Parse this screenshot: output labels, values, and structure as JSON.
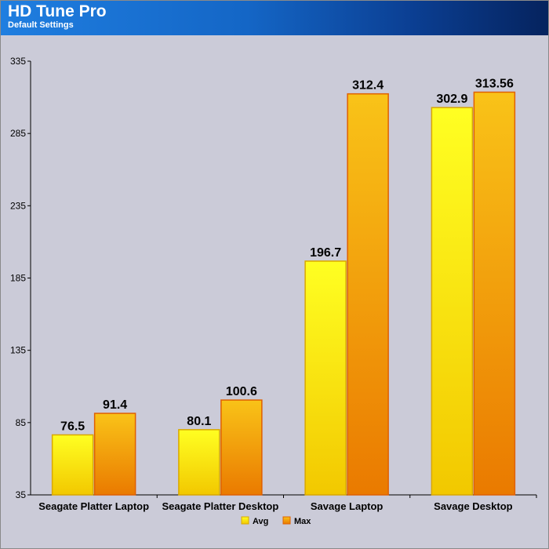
{
  "header": {
    "title": "HD Tune Pro",
    "subtitle": "Default Settings"
  },
  "colors": {
    "avg_top": "#ffff22",
    "avg_bottom": "#f2c800",
    "max_top": "#f9c318",
    "max_bottom": "#ea7a00",
    "bar_border_avg": "#d9a800",
    "bar_border_max": "#e06000",
    "background": "#cbcbd8"
  },
  "chart_data": {
    "type": "bar",
    "title": "HD Tune Pro",
    "subtitle": "Default Settings",
    "categories": [
      "Seagate Platter Laptop",
      "Seagate Platter Desktop",
      "Savage Laptop",
      "Savage Desktop"
    ],
    "series": [
      {
        "name": "Avg",
        "values": [
          76.5,
          80.1,
          196.7,
          302.9
        ],
        "labels": [
          "76.5",
          "80.1",
          "196.7",
          "302.9"
        ]
      },
      {
        "name": "Max",
        "values": [
          91.4,
          100.6,
          312.4,
          313.56
        ],
        "labels": [
          "91.4",
          "100.6",
          "312.4",
          "313.56"
        ]
      }
    ],
    "ylim": [
      35,
      335
    ],
    "yticks": [
      35,
      85,
      135,
      185,
      235,
      285,
      335
    ],
    "xlabel": "",
    "ylabel": "",
    "grid": false,
    "legend": "bottom-center"
  }
}
